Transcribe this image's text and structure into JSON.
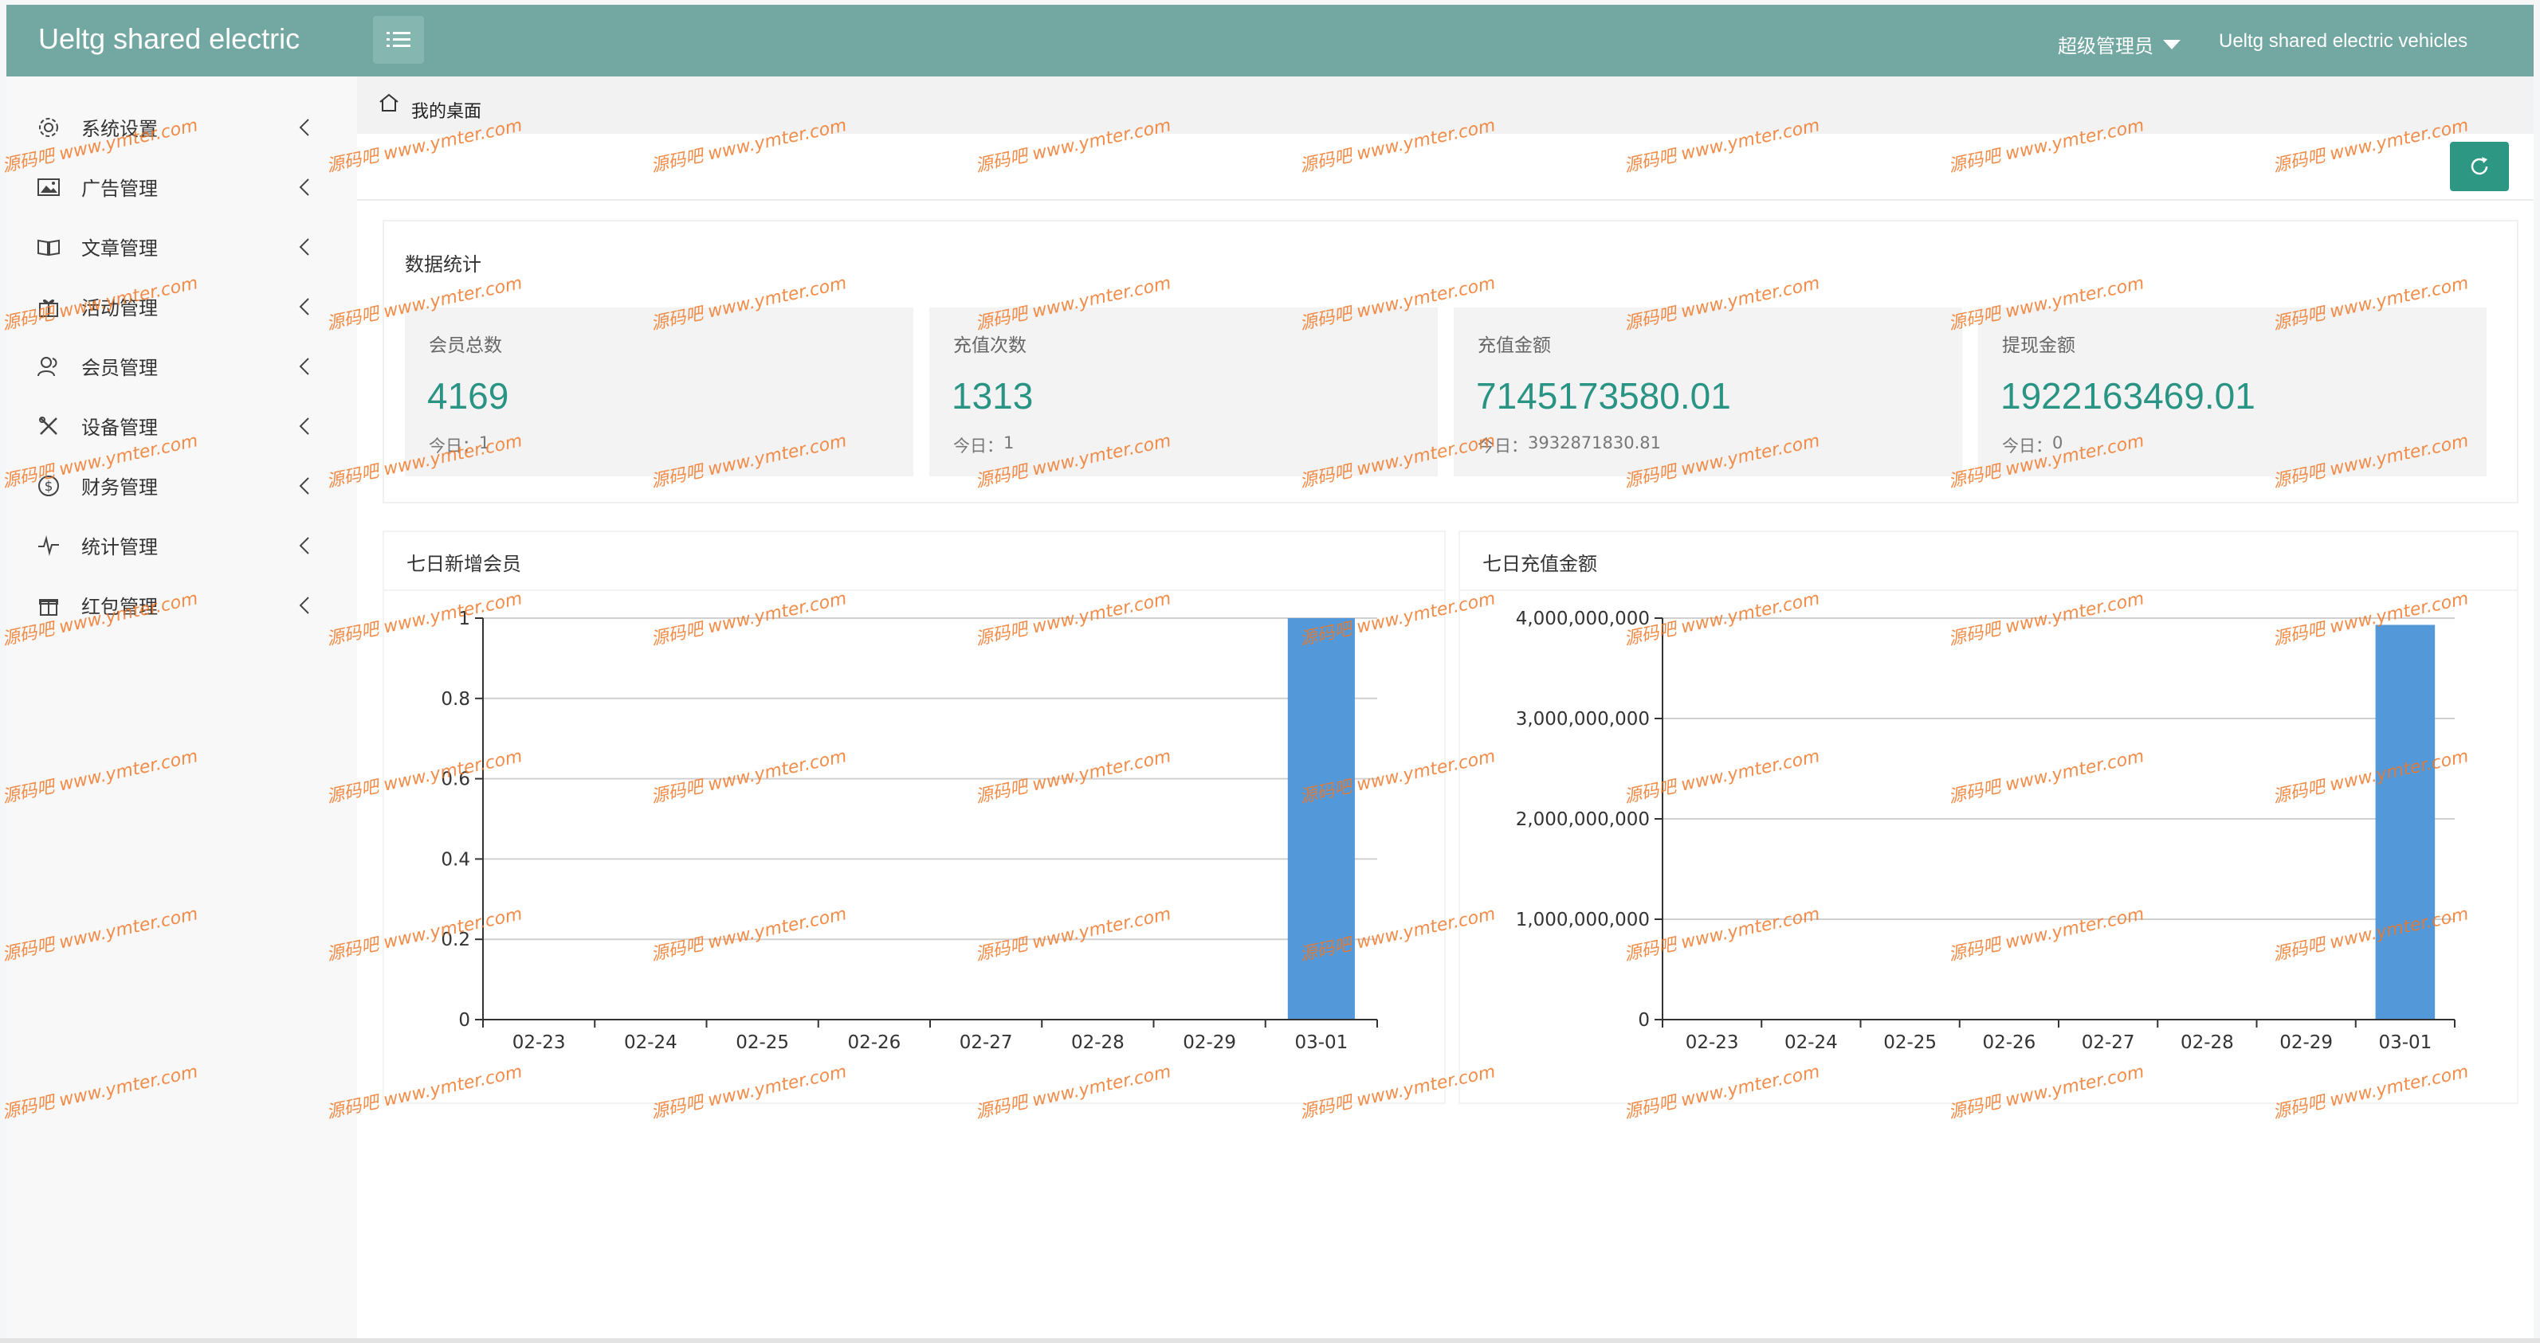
{
  "app": {
    "logo": "Ueltg shared electric",
    "admin_label": "超级管理员",
    "brand": "Ueltg shared electric vehicles"
  },
  "sidebar": {
    "items": [
      {
        "label": "系统设置",
        "icon": "gear-icon"
      },
      {
        "label": "广告管理",
        "icon": "image-icon"
      },
      {
        "label": "文章管理",
        "icon": "book-icon"
      },
      {
        "label": "活动管理",
        "icon": "gift-icon"
      },
      {
        "label": "会员管理",
        "icon": "users-icon"
      },
      {
        "label": "设备管理",
        "icon": "tools-icon"
      },
      {
        "label": "财务管理",
        "icon": "dollar-icon"
      },
      {
        "label": "统计管理",
        "icon": "pulse-icon"
      },
      {
        "label": "红包管理",
        "icon": "redpacket-icon"
      }
    ]
  },
  "breadcrumb": {
    "label": "我的桌面"
  },
  "stats": {
    "title": "数据统计",
    "today_prefix": "今日：",
    "cards": [
      {
        "label": "会员总数",
        "value": "4169",
        "today": "1"
      },
      {
        "label": "充值次数",
        "value": "1313",
        "today": "1"
      },
      {
        "label": "充值金额",
        "value": "7145173580.01",
        "today": "3932871830.81"
      },
      {
        "label": "提现金额",
        "value": "1922163469.01",
        "today": "0"
      }
    ]
  },
  "chart_data": [
    {
      "type": "bar",
      "title": "七日新增会员",
      "categories": [
        "02-23",
        "02-24",
        "02-25",
        "02-26",
        "02-27",
        "02-28",
        "02-29",
        "03-01"
      ],
      "values": [
        0,
        0,
        0,
        0,
        0,
        0,
        0,
        1
      ],
      "ylim": [
        0,
        1
      ],
      "yticks": [
        "0",
        "0.2",
        "0.4",
        "0.6",
        "0.8",
        "1"
      ],
      "grid": true,
      "color": "#5398d8"
    },
    {
      "type": "bar",
      "title": "七日充值金额",
      "categories": [
        "02-23",
        "02-24",
        "02-25",
        "02-26",
        "02-27",
        "02-28",
        "02-29",
        "03-01"
      ],
      "values": [
        0,
        0,
        0,
        0,
        0,
        0,
        0,
        3932871830.81
      ],
      "ylim": [
        0,
        4000000000
      ],
      "yticks": [
        "0",
        "1,000,000,000",
        "2,000,000,000",
        "3,000,000,000",
        "4,000,000,000"
      ],
      "grid": true,
      "color": "#5398d8"
    }
  ],
  "watermark": {
    "text": "www.ymter.com",
    "prefix": "源码吧"
  },
  "colors": {
    "header": "#72a8a1",
    "accent": "#2a9484",
    "bar": "#5398d8"
  }
}
